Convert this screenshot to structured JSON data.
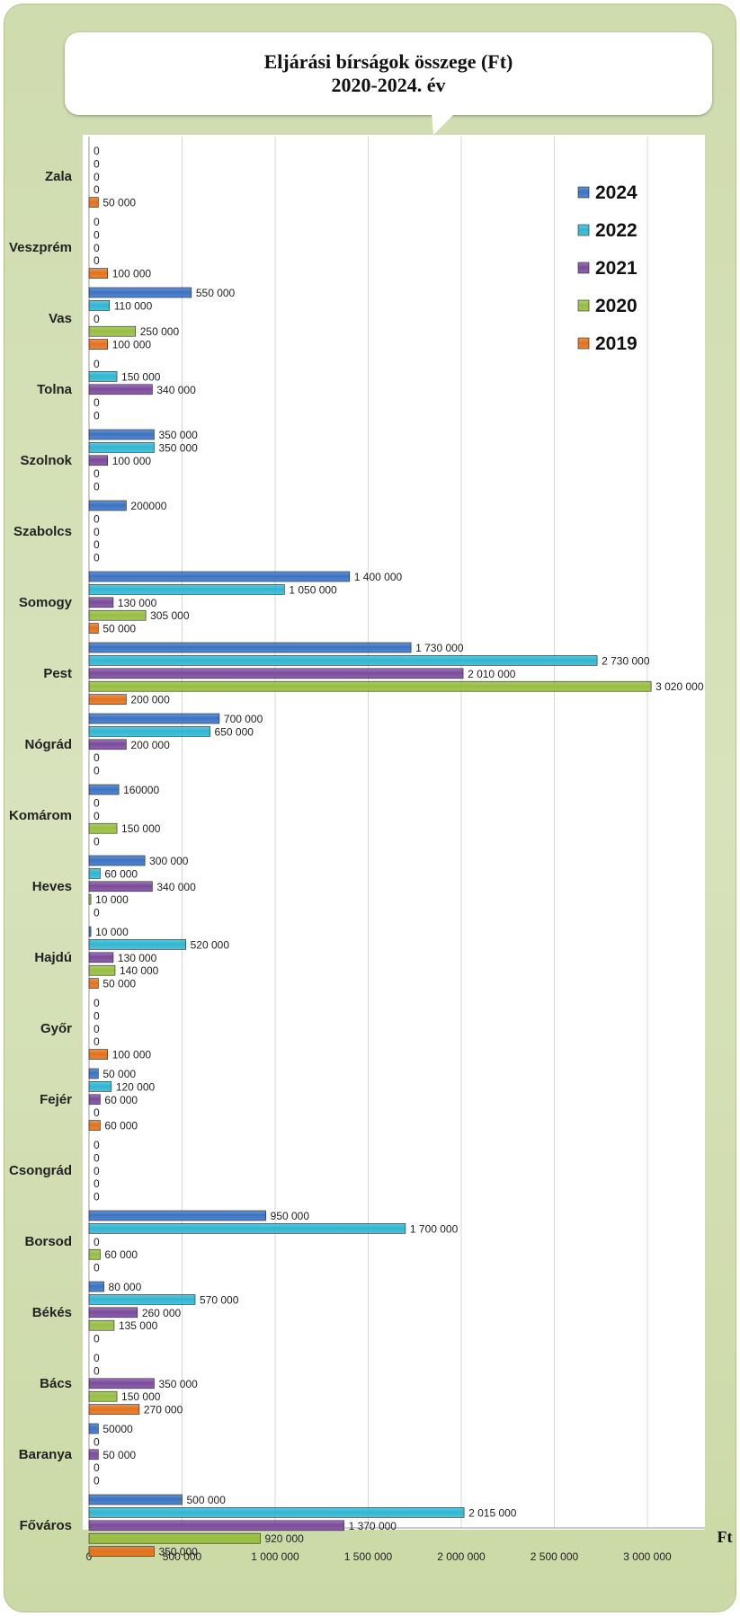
{
  "chart_data": {
    "type": "bar",
    "orientation": "horizontal",
    "title": "Eljárási bírságok összege (Ft)",
    "subtitle": "2020-2024. év",
    "xlabel": "Ft",
    "ylabel": "",
    "xlim": [
      0,
      3300000
    ],
    "x_ticks": [
      "0",
      "500 000",
      "1 000 000",
      "1 500 000",
      "2 000 000",
      "2 500 000",
      "3 000 000"
    ],
    "grid": "vertical",
    "legend_position": "top-right",
    "categories": [
      "Zala",
      "Veszprém",
      "Vas",
      "Tolna",
      "Szolnok",
      "Szabolcs",
      "Somogy",
      "Pest",
      "Nógrád",
      "Komárom",
      "Heves",
      "Hajdú",
      "Győr",
      "Fejér",
      "Csongrád",
      "Borsod",
      "Békés",
      "Bács",
      "Baranya",
      "Főváros"
    ],
    "series": [
      {
        "name": "2024",
        "color": "#3a73c4",
        "values": [
          0,
          0,
          550000,
          0,
          350000,
          200000,
          1400000,
          1730000,
          700000,
          160000,
          300000,
          10000,
          0,
          50000,
          0,
          950000,
          80000,
          0,
          50000,
          500000
        ],
        "labels": [
          "0",
          "0",
          "550 000",
          "0",
          "350 000",
          "200000",
          "1 400 000",
          "1 730 000",
          "700 000",
          "160000",
          "300 000",
          "10 000",
          "0",
          "50 000",
          "0",
          "950 000",
          "80 000",
          "0",
          "50000",
          "500 000"
        ]
      },
      {
        "name": "2022",
        "color": "#2fb6d2",
        "values": [
          0,
          0,
          110000,
          150000,
          350000,
          0,
          1050000,
          2730000,
          650000,
          0,
          60000,
          520000,
          0,
          120000,
          0,
          1700000,
          570000,
          0,
          0,
          2015000
        ],
        "labels": [
          "0",
          "0",
          "110 000",
          "150 000",
          "350 000",
          "0",
          "1 050 000",
          "2 730 000",
          "650 000",
          "0",
          "60 000",
          "520 000",
          "0",
          "120 000",
          "0",
          "1 700 000",
          "570 000",
          "0",
          "0",
          "2 015 000"
        ]
      },
      {
        "name": "2021",
        "color": "#7c4a9e",
        "values": [
          0,
          0,
          0,
          340000,
          100000,
          0,
          130000,
          2010000,
          200000,
          0,
          340000,
          130000,
          0,
          60000,
          0,
          0,
          260000,
          350000,
          50000,
          1370000
        ],
        "labels": [
          "0",
          "0",
          "0",
          "340 000",
          "100 000",
          "0",
          "130 000",
          "2 010 000",
          "200 000",
          "0",
          "340 000",
          "130 000",
          "0",
          "60 000",
          "0",
          "0",
          "260 000",
          "350 000",
          "50 000",
          "1 370 000"
        ]
      },
      {
        "name": "2020",
        "color": "#96be3f",
        "values": [
          0,
          0,
          250000,
          0,
          0,
          0,
          305000,
          3020000,
          0,
          150000,
          10000,
          140000,
          0,
          0,
          0,
          60000,
          135000,
          150000,
          0,
          920000
        ],
        "labels": [
          "0",
          "0",
          "250 000",
          "0",
          "0",
          "0",
          "305 000",
          "3 020 000",
          "0",
          "150 000",
          "10 000",
          "140 000",
          "0",
          "0",
          "0",
          "60 000",
          "135 000",
          "150 000",
          "0",
          "920 000"
        ]
      },
      {
        "name": "2019",
        "color": "#e3711b",
        "values": [
          50000,
          100000,
          100000,
          0,
          0,
          0,
          50000,
          200000,
          0,
          0,
          0,
          50000,
          100000,
          60000,
          0,
          0,
          0,
          270000,
          0,
          350000
        ],
        "labels": [
          "50 000",
          "100 000",
          "100 000",
          "0",
          "0",
          "0",
          "50 000",
          "200 000",
          "0",
          "0",
          "0",
          "50 000",
          "100 000",
          "60 000",
          "0",
          "0",
          "0",
          "270 000",
          "0",
          "350 000"
        ]
      }
    ]
  }
}
